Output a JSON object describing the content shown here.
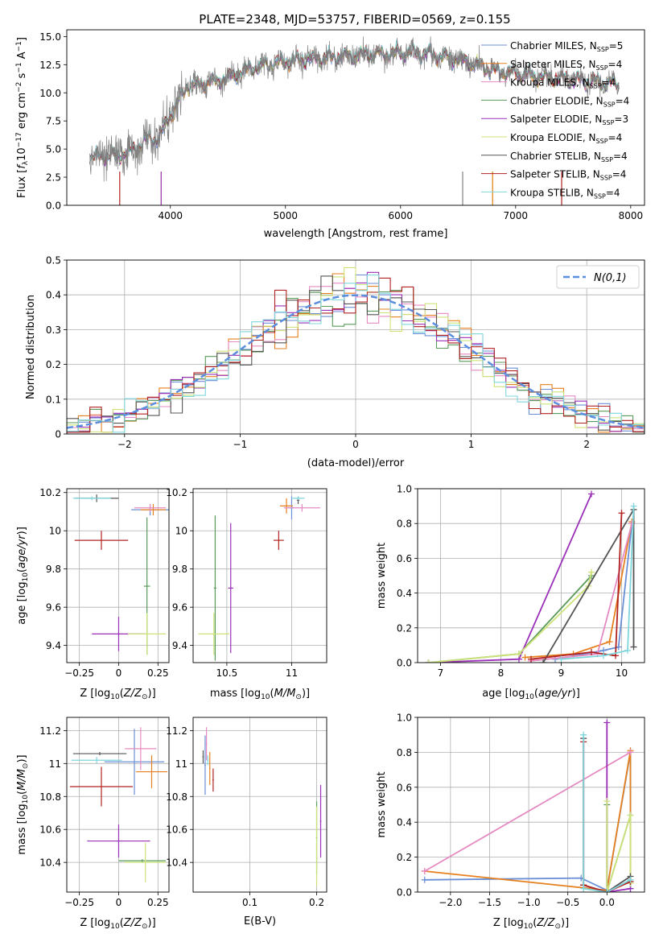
{
  "title": "PLATE=2348, MJD=53757, FIBERID=0569, z=0.155",
  "models": [
    {
      "name": "Chabrier MILES, N_SSP=5",
      "prefix": "Chabrier MILES, N",
      "sub": "SSP",
      "suffix": "=5",
      "color": "#6a8fd6"
    },
    {
      "name": "Salpeter MILES, N_SSP=4",
      "prefix": "Salpeter MILES, N",
      "sub": "SSP",
      "suffix": "=4",
      "color": "#e6801f"
    },
    {
      "name": "Kroupa MILES, N_SSP=4",
      "prefix": "Kroupa MILES, N",
      "sub": "SSP",
      "suffix": "=4",
      "color": "#e58ac2"
    },
    {
      "name": "Chabrier ELODIE, N_SSP=4",
      "prefix": "Chabrier ELODIE, N",
      "sub": "SSP",
      "suffix": "=4",
      "color": "#5a9a5a"
    },
    {
      "name": "Salpeter ELODIE, N_SSP=3",
      "prefix": "Salpeter ELODIE, N",
      "sub": "SSP",
      "suffix": "=3",
      "color": "#9b30b8"
    },
    {
      "name": "Kroupa ELODIE, N_SSP=4",
      "prefix": "Kroupa ELODIE, N",
      "sub": "SSP",
      "suffix": "=4",
      "color": "#cde37a"
    },
    {
      "name": "Chabrier STELIB, N_SSP=4",
      "prefix": "Chabrier STELIB, N",
      "sub": "SSP",
      "suffix": "=4",
      "color": "#555555"
    },
    {
      "name": "Salpeter STELIB, N_SSP=4",
      "prefix": "Salpeter STELIB, N",
      "sub": "SSP",
      "suffix": "=4",
      "color": "#b22222"
    },
    {
      "name": "Kroupa STELIB, N_SSP=4",
      "prefix": "Kroupa STELIB, N",
      "sub": "SSP",
      "suffix": "=4",
      "color": "#7fd6dc"
    }
  ],
  "chart_data": [
    {
      "id": "spectrum",
      "type": "line",
      "xlabel": "wavelength [Angstrom, rest frame]",
      "ylabel": "Flux [f_λ 10^-17 erg cm^-2 s^-1 A^-1]",
      "xlim": [
        3100,
        8120
      ],
      "ylim": [
        0,
        15.6
      ],
      "xticks": [
        4000,
        5000,
        6000,
        7000,
        8000
      ],
      "yticks": [
        0.0,
        2.5,
        5.0,
        7.5,
        10.0,
        12.5,
        15.0
      ],
      "grid": false,
      "legend": "top-right",
      "continuum": {
        "x": [
          3300,
          3500,
          3650,
          3800,
          3900,
          4000,
          4150,
          4400,
          4700,
          5000,
          5300,
          5600,
          5900,
          6200,
          6500,
          6800,
          7100,
          7400,
          7700,
          7900
        ],
        "y": [
          4.2,
          4.4,
          4.7,
          5.8,
          6.0,
          8.0,
          10.6,
          11.0,
          12.2,
          12.8,
          13.1,
          13.3,
          13.5,
          13.5,
          13.0,
          12.0,
          11.6,
          11.2,
          10.9,
          10.8
        ]
      },
      "data_color": "#808080"
    },
    {
      "id": "residuals",
      "type": "histogram",
      "xlabel": "(data-model)/error",
      "ylabel": "Normed distribution",
      "xlim": [
        -2.5,
        2.5
      ],
      "ylim": [
        0,
        0.5
      ],
      "xticks": [
        -2,
        -1,
        0,
        1,
        2
      ],
      "yticks": [
        0.0,
        0.1,
        0.2,
        0.3,
        0.4,
        0.5
      ],
      "grid": true,
      "legend": "top-right",
      "reference": {
        "label": "N(0,1)",
        "mu": 0,
        "sigma": 1,
        "color": "#5b8ede"
      },
      "bin_width": 0.1
    },
    {
      "id": "age-vs-Z",
      "type": "errorbar",
      "xlabel": "Z [log10(Z/Z⊙)]",
      "ylabel": "age  [log10(age/yr)]",
      "xlim": [
        -0.33,
        0.32
      ],
      "ylim": [
        9.31,
        10.22
      ],
      "xticks": [
        -0.25,
        0.0,
        0.25
      ],
      "ytick_labels": [
        "-0.25",
        "0.00",
        "0.25"
      ],
      "yticks": [
        9.4,
        9.6,
        9.8,
        10.0,
        10.2
      ],
      "grid": true,
      "points": [
        {
          "model": "Chabrier MILES",
          "x": 0.2,
          "xe": 0.12,
          "y": 10.11,
          "ye": 0.03
        },
        {
          "model": "Salpeter MILES",
          "x": 0.22,
          "xe": 0.08,
          "y": 10.11,
          "ye": 0.03
        },
        {
          "model": "Kroupa MILES",
          "x": 0.2,
          "xe": 0.1,
          "y": 10.12,
          "ye": 0.02
        },
        {
          "model": "Chabrier ELODIE",
          "x": 0.18,
          "xe": 0.02,
          "y": 9.71,
          "ye": 0.36
        },
        {
          "model": "Salpeter ELODIE",
          "x": 0.0,
          "xe": 0.17,
          "y": 9.46,
          "ye": 0.09
        },
        {
          "model": "Kroupa ELODIE",
          "x": 0.18,
          "xe": 0.12,
          "y": 9.46,
          "ye": 0.11
        },
        {
          "model": "Chabrier STELIB",
          "x": -0.14,
          "xe": 0.14,
          "y": 10.17,
          "ye": 0.02
        },
        {
          "model": "Salpeter STELIB",
          "x": -0.11,
          "xe": 0.17,
          "y": 9.95,
          "ye": 0.05
        },
        {
          "model": "Kroupa STELIB",
          "x": -0.17,
          "xe": 0.12,
          "y": 10.17,
          "ye": 0.01
        }
      ]
    },
    {
      "id": "age-vs-mass",
      "type": "errorbar",
      "xlabel": "mass [log10(M/M⊙)]",
      "ylabel": "",
      "xlim": [
        10.24,
        11.27
      ],
      "ylim": [
        9.31,
        10.22
      ],
      "xticks": [
        10.5,
        11.0
      ],
      "yticks": [
        9.4,
        9.6,
        9.8,
        10.0,
        10.2
      ],
      "grid": true,
      "points": [
        {
          "model": "Chabrier MILES",
          "x": 11.0,
          "xe": 0.02,
          "y": 10.12,
          "ye": 0.06
        },
        {
          "model": "Salpeter MILES",
          "x": 10.96,
          "xe": 0.05,
          "y": 10.13,
          "ye": 0.04
        },
        {
          "model": "Kroupa MILES",
          "x": 11.08,
          "xe": 0.14,
          "y": 10.12,
          "ye": 0.02
        },
        {
          "model": "Chabrier ELODIE",
          "x": 10.41,
          "xe": 0.01,
          "y": 9.7,
          "ye": 0.38
        },
        {
          "model": "Salpeter ELODIE",
          "x": 10.53,
          "xe": 0.02,
          "y": 9.7,
          "ye": 0.34
        },
        {
          "model": "Kroupa ELODIE",
          "x": 10.4,
          "xe": 0.12,
          "y": 9.46,
          "ye": 0.11
        },
        {
          "model": "Chabrier STELIB",
          "x": 11.05,
          "xe": 0.01,
          "y": 10.16,
          "ye": 0.02
        },
        {
          "model": "Salpeter STELIB",
          "x": 10.9,
          "xe": 0.04,
          "y": 9.95,
          "ye": 0.05
        },
        {
          "model": "Kroupa STELIB",
          "x": 11.05,
          "xe": 0.05,
          "y": 10.17,
          "ye": 0.01
        }
      ]
    },
    {
      "id": "massweight-vs-age",
      "type": "line",
      "xlabel": "age  [log10(age/yr)]",
      "ylabel": "mass weight",
      "xlim": [
        6.62,
        10.38
      ],
      "ylim": [
        0,
        1
      ],
      "xticks": [
        7,
        8,
        9,
        10
      ],
      "yticks": [
        0.0,
        0.2,
        0.4,
        0.6,
        0.8,
        1.0
      ],
      "grid": true,
      "series": [
        {
          "model": "Chabrier MILES",
          "x": [
            8.9,
            9.7,
            9.95,
            10.17
          ],
          "y": [
            0.02,
            0.07,
            0.09,
            0.8
          ]
        },
        {
          "model": "Salpeter MILES",
          "x": [
            8.4,
            9.2,
            9.8,
            10.17
          ],
          "y": [
            0.03,
            0.05,
            0.12,
            0.81
          ]
        },
        {
          "model": "Kroupa MILES",
          "x": [
            8.5,
            9.6,
            10.17
          ],
          "y": [
            0.01,
            0.05,
            0.8
          ]
        },
        {
          "model": "Chabrier ELODIE",
          "x": [
            6.8,
            8.3,
            9.5
          ],
          "y": [
            0.0,
            0.05,
            0.5
          ]
        },
        {
          "model": "Salpeter ELODIE",
          "x": [
            6.8,
            8.3,
            9.5
          ],
          "y": [
            0.0,
            0.02,
            0.97
          ]
        },
        {
          "model": "Kroupa ELODIE",
          "x": [
            6.8,
            8.3,
            9.45,
            9.5
          ],
          "y": [
            0.0,
            0.05,
            0.44,
            0.52
          ]
        },
        {
          "model": "Chabrier STELIB",
          "x": [
            8.7,
            10.2,
            10.2
          ],
          "y": [
            0.0,
            0.88,
            0.09
          ]
        },
        {
          "model": "Salpeter STELIB",
          "x": [
            8.5,
            9.5,
            9.9,
            10.0
          ],
          "y": [
            0.02,
            0.06,
            0.04,
            0.86
          ]
        },
        {
          "model": "Kroupa STELIB",
          "x": [
            9.0,
            9.7,
            10.1,
            10.2
          ],
          "y": [
            0.02,
            0.04,
            0.07,
            0.9
          ]
        }
      ]
    },
    {
      "id": "mass-vs-Z",
      "type": "errorbar",
      "xlabel": "Z [log10(Z/Z⊙)]",
      "ylabel": "mass [log10(M/M⊙)]",
      "xlim": [
        -0.33,
        0.32
      ],
      "ylim": [
        10.22,
        11.28
      ],
      "xticks": [
        -0.25,
        0.0,
        0.25
      ],
      "ytick_labels": [
        "-0.25",
        "0.00",
        "0.25"
      ],
      "yticks": [
        10.4,
        10.6,
        10.8,
        11.0,
        11.2
      ],
      "grid": true,
      "points": [
        {
          "model": "Chabrier MILES",
          "x": 0.1,
          "xe": 0.19,
          "y": 11.01,
          "ye": 0.2
        },
        {
          "model": "Salpeter MILES",
          "x": 0.21,
          "xe": 0.1,
          "y": 10.95,
          "ye": 0.1
        },
        {
          "model": "Kroupa MILES",
          "x": 0.14,
          "xe": 0.1,
          "y": 11.09,
          "ye": 0.13
        },
        {
          "model": "Chabrier ELODIE",
          "x": 0.15,
          "xe": 0.15,
          "y": 10.41,
          "ye": 0.01
        },
        {
          "model": "Salpeter ELODIE",
          "x": 0.0,
          "xe": 0.2,
          "y": 10.53,
          "ye": 0.1
        },
        {
          "model": "Kroupa ELODIE",
          "x": 0.17,
          "xe": 0.13,
          "y": 10.4,
          "ye": 0.12
        },
        {
          "model": "Chabrier STELIB",
          "x": -0.12,
          "xe": 0.17,
          "y": 11.06,
          "ye": 0.01
        },
        {
          "model": "Salpeter STELIB",
          "x": -0.11,
          "xe": 0.2,
          "y": 10.86,
          "ye": 0.12
        },
        {
          "model": "Kroupa STELIB",
          "x": -0.14,
          "xe": 0.16,
          "y": 11.02,
          "ye": 0.02
        }
      ]
    },
    {
      "id": "mass-vs-EBV",
      "type": "errorbar",
      "xlabel": "E(B-V)",
      "ylabel": "",
      "xlim": [
        0.015,
        0.215
      ],
      "ylim": [
        10.22,
        11.28
      ],
      "xticks": [
        0.1,
        0.2
      ],
      "yticks": [
        10.4,
        10.6,
        10.8,
        11.0,
        11.2
      ],
      "grid": true,
      "points": [
        {
          "model": "Chabrier MILES",
          "x": 0.033,
          "xe": 0.001,
          "y": 10.99,
          "ye": 0.18
        },
        {
          "model": "Salpeter MILES",
          "x": 0.04,
          "xe": 0.001,
          "y": 10.97,
          "ye": 0.1
        },
        {
          "model": "Kroupa MILES",
          "x": 0.035,
          "xe": 0.001,
          "y": 11.12,
          "ye": 0.1
        },
        {
          "model": "Chabrier ELODIE",
          "x": 0.2,
          "xe": 0.001,
          "y": 10.55,
          "ye": 0.22
        },
        {
          "model": "Salpeter ELODIE",
          "x": 0.206,
          "xe": 0.001,
          "y": 10.65,
          "ye": 0.22
        },
        {
          "model": "Kroupa ELODIE",
          "x": 0.2,
          "xe": 0.001,
          "y": 10.5,
          "ye": 0.24
        },
        {
          "model": "Chabrier STELIB",
          "x": 0.03,
          "xe": 0.001,
          "y": 11.04,
          "ye": 0.04
        },
        {
          "model": "Salpeter STELIB",
          "x": 0.045,
          "xe": 0.001,
          "y": 10.9,
          "ye": 0.07
        },
        {
          "model": "Kroupa STELIB",
          "x": 0.037,
          "xe": 0.001,
          "y": 11.02,
          "ye": 0.03
        }
      ]
    },
    {
      "id": "massweight-vs-Z",
      "type": "line",
      "xlabel": "Z [log10(Z/Z⊙)]",
      "ylabel": "mass weight",
      "xlim": [
        -2.42,
        0.48
      ],
      "ylim": [
        0,
        1
      ],
      "xticks": [
        -2.0,
        -1.5,
        -1.0,
        -0.5,
        0.0
      ],
      "yticks": [
        0.0,
        0.2,
        0.4,
        0.6,
        0.8,
        1.0
      ],
      "grid": true,
      "series": [
        {
          "model": "Chabrier MILES",
          "x": [
            -2.33,
            -0.33,
            0.0,
            0.3,
            0.3
          ],
          "y": [
            0.07,
            0.08,
            0.01,
            0.8,
            0.02
          ]
        },
        {
          "model": "Salpeter MILES",
          "x": [
            -2.33,
            0.0,
            0.3,
            0.3
          ],
          "y": [
            0.12,
            0.01,
            0.81,
            0.06
          ]
        },
        {
          "model": "Kroupa MILES",
          "x": [
            -2.33,
            0.3
          ],
          "y": [
            0.12,
            0.8
          ]
        },
        {
          "model": "Chabrier ELODIE",
          "x": [
            0.0,
            0.0,
            0.3
          ],
          "y": [
            0.5,
            0.0,
            0.44
          ]
        },
        {
          "model": "Salpeter ELODIE",
          "x": [
            0.0,
            0.0,
            0.3
          ],
          "y": [
            0.97,
            0.0,
            0.02
          ]
        },
        {
          "model": "Kroupa ELODIE",
          "x": [
            0.0,
            0.0,
            0.3,
            0.3
          ],
          "y": [
            0.52,
            0.0,
            0.44,
            0.05
          ]
        },
        {
          "model": "Chabrier STELIB",
          "x": [
            -0.3,
            -0.3,
            0.0,
            0.3
          ],
          "y": [
            0.88,
            0.04,
            0.0,
            0.09
          ]
        },
        {
          "model": "Salpeter STELIB",
          "x": [
            -0.3,
            -0.3,
            0.0,
            0.3
          ],
          "y": [
            0.86,
            0.04,
            0.0,
            0.06
          ]
        },
        {
          "model": "Kroupa STELIB",
          "x": [
            -0.3,
            -0.3,
            0.0,
            0.3
          ],
          "y": [
            0.9,
            0.02,
            0.0,
            0.07
          ]
        }
      ]
    }
  ]
}
